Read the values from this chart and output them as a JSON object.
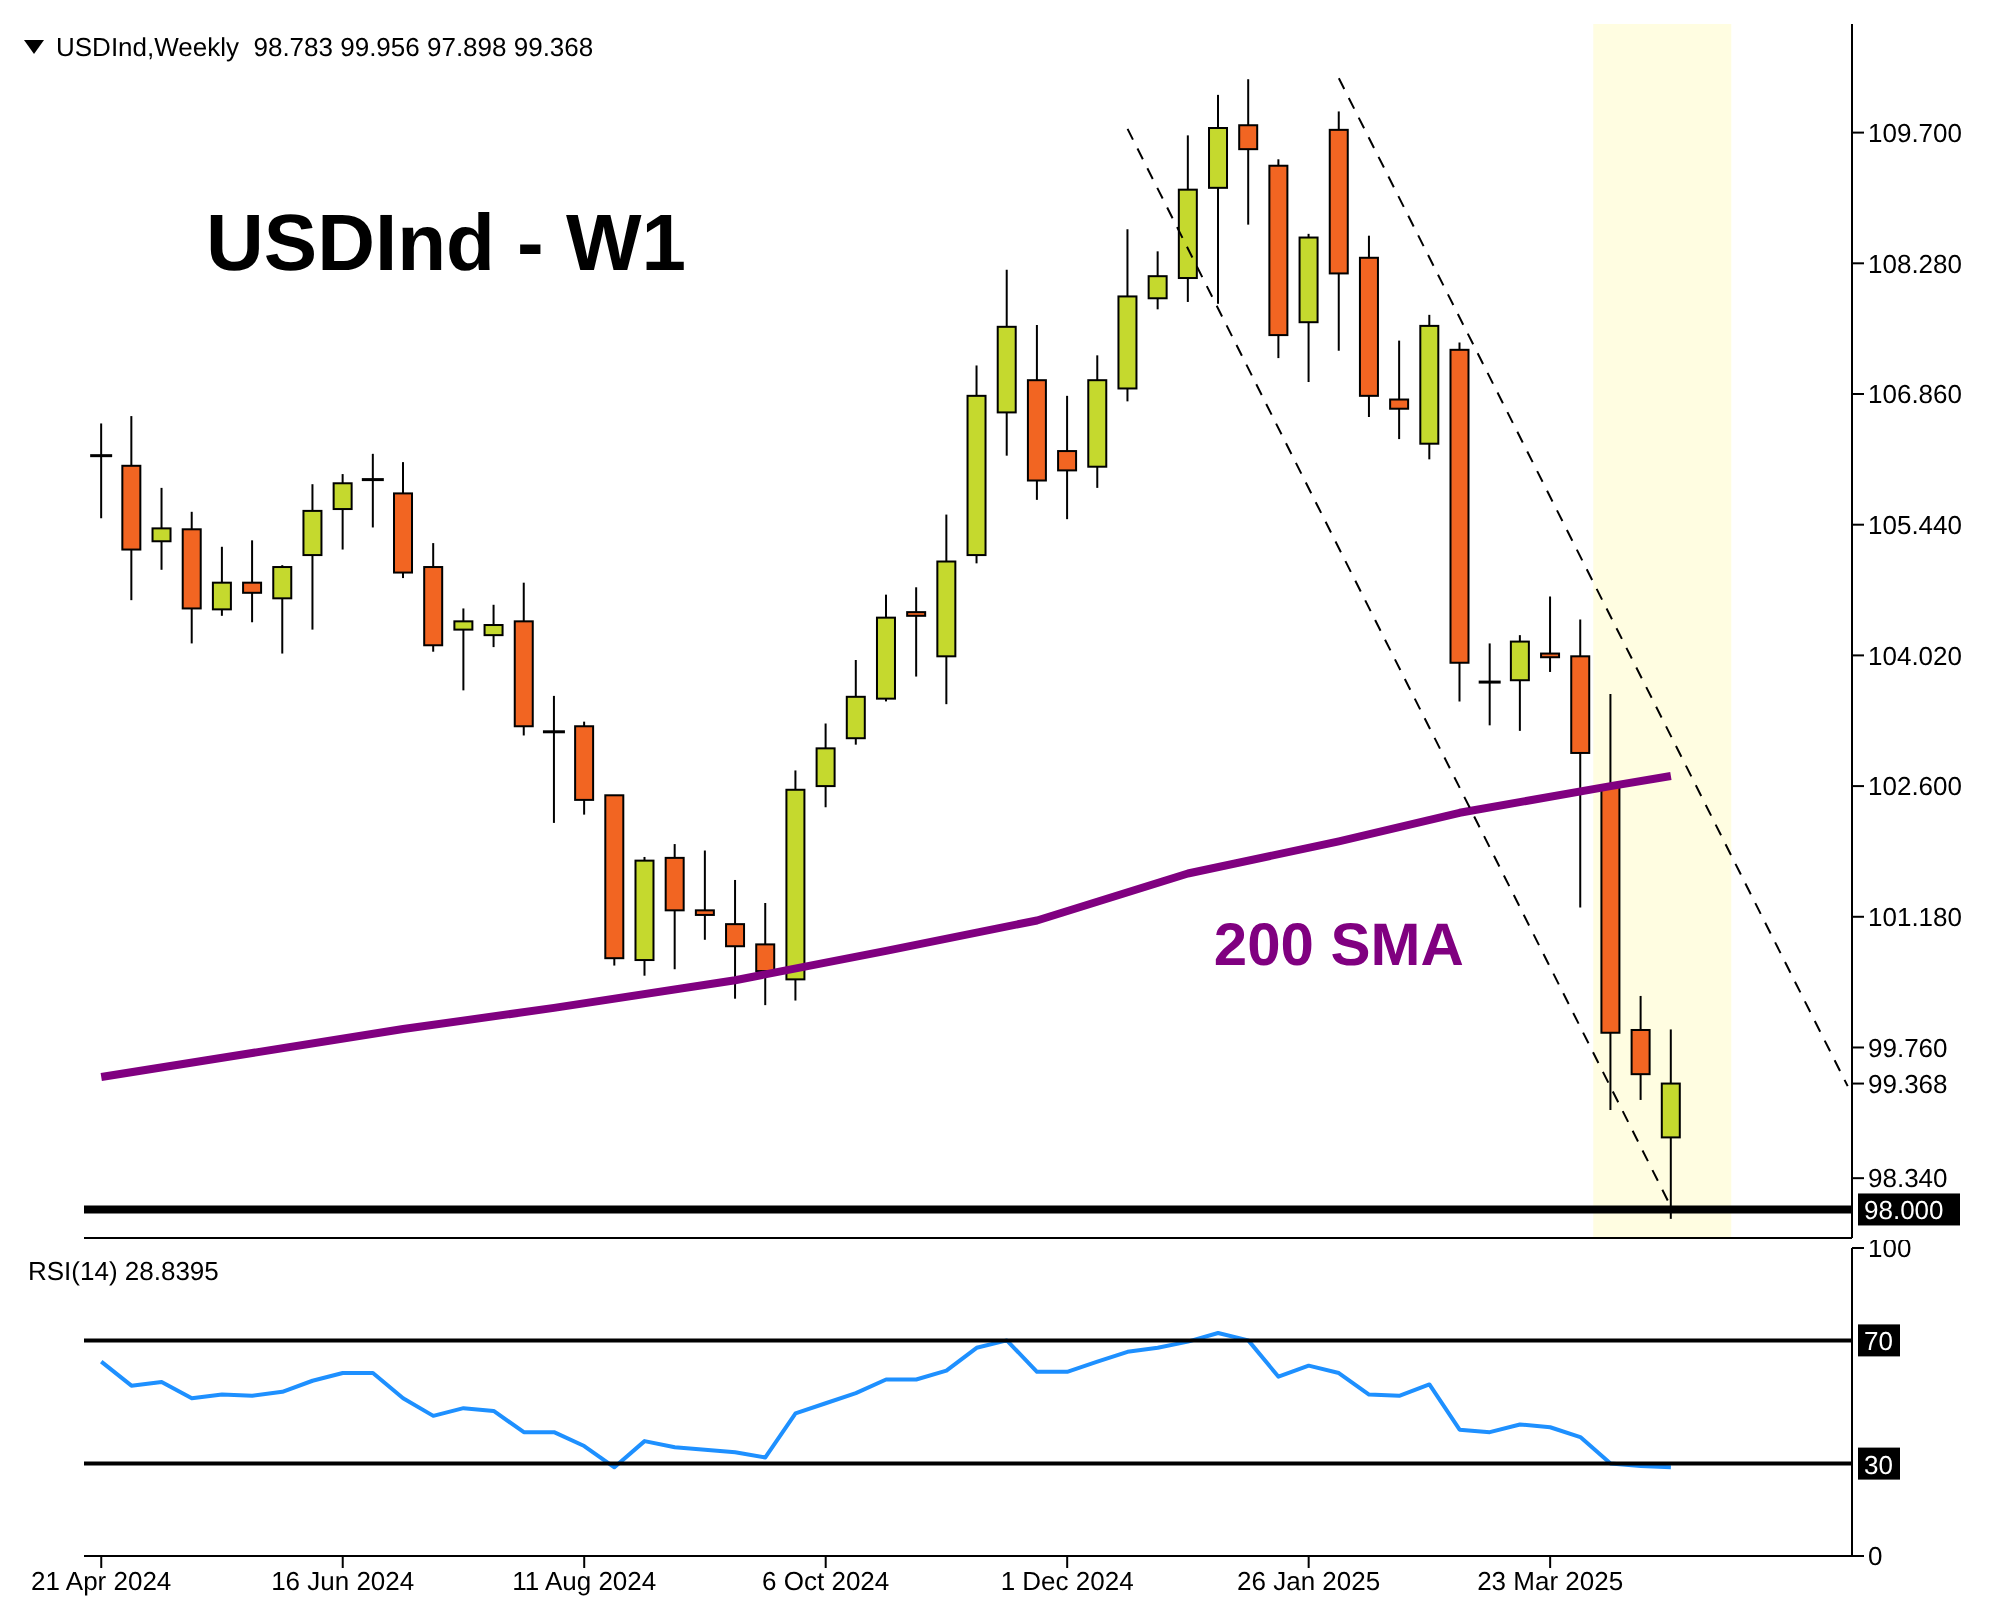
{
  "chart_data": [
    {
      "type": "candlestick",
      "title": "USDInd - W1",
      "subtitle": "USDInd,Weekly  98.783 99.956 97.898 99.368",
      "x": [
        "2024-04-21",
        "2024-04-28",
        "2024-05-05",
        "2024-05-12",
        "2024-05-19",
        "2024-05-26",
        "2024-06-02",
        "2024-06-09",
        "2024-06-16",
        "2024-06-23",
        "2024-06-30",
        "2024-07-07",
        "2024-07-14",
        "2024-07-21",
        "2024-07-28",
        "2024-08-04",
        "2024-08-11",
        "2024-08-18",
        "2024-08-25",
        "2024-09-01",
        "2024-09-08",
        "2024-09-15",
        "2024-09-22",
        "2024-09-29",
        "2024-10-06",
        "2024-10-13",
        "2024-10-20",
        "2024-10-27",
        "2024-11-03",
        "2024-11-10",
        "2024-11-17",
        "2024-11-24",
        "2024-12-01",
        "2024-12-08",
        "2024-12-15",
        "2024-12-22",
        "2024-12-29",
        "2025-01-05",
        "2025-01-12",
        "2025-01-19",
        "2025-01-26",
        "2025-02-02",
        "2025-02-09",
        "2025-02-16",
        "2025-02-23",
        "2025-03-02",
        "2025-03-09",
        "2025-03-16",
        "2025-03-23",
        "2025-03-30",
        "2025-04-06",
        "2025-04-13",
        "2025-04-20"
      ],
      "ohlc": [
        [
          106.19,
          106.54,
          105.51,
          106.19
        ],
        [
          106.08,
          106.62,
          104.62,
          105.17
        ],
        [
          105.26,
          105.84,
          104.95,
          105.4
        ],
        [
          105.39,
          105.58,
          104.15,
          104.53
        ],
        [
          104.52,
          105.2,
          104.45,
          104.81
        ],
        [
          104.81,
          105.27,
          104.38,
          104.7
        ],
        [
          104.64,
          105.0,
          104.04,
          104.98
        ],
        [
          105.11,
          105.88,
          104.3,
          105.59
        ],
        [
          105.61,
          105.99,
          105.17,
          105.89
        ],
        [
          105.93,
          106.21,
          105.41,
          105.93
        ],
        [
          105.78,
          106.12,
          104.86,
          104.92
        ],
        [
          104.98,
          105.24,
          104.06,
          104.13
        ],
        [
          104.3,
          104.53,
          103.64,
          104.39
        ],
        [
          104.24,
          104.57,
          104.11,
          104.35
        ],
        [
          104.39,
          104.81,
          103.15,
          103.25
        ],
        [
          103.19,
          103.58,
          102.2,
          103.19
        ],
        [
          103.25,
          103.3,
          102.29,
          102.45
        ],
        [
          102.5,
          102.5,
          100.65,
          100.73
        ],
        [
          100.71,
          101.83,
          100.54,
          101.79
        ],
        [
          101.82,
          101.97,
          100.61,
          101.25
        ],
        [
          101.25,
          101.9,
          100.93,
          101.2
        ],
        [
          101.1,
          101.58,
          100.29,
          100.86
        ],
        [
          100.88,
          101.33,
          100.22,
          100.59
        ],
        [
          100.5,
          102.77,
          100.27,
          102.56
        ],
        [
          102.6,
          103.28,
          102.37,
          103.01
        ],
        [
          103.12,
          103.97,
          103.05,
          103.57
        ],
        [
          103.55,
          104.68,
          103.52,
          104.43
        ],
        [
          104.49,
          104.76,
          103.79,
          104.45
        ],
        [
          104.01,
          105.55,
          103.49,
          105.04
        ],
        [
          105.11,
          107.17,
          105.02,
          106.84
        ],
        [
          106.66,
          108.21,
          106.19,
          107.59
        ],
        [
          107.01,
          107.61,
          105.71,
          105.92
        ],
        [
          106.24,
          106.84,
          105.5,
          106.03
        ],
        [
          106.07,
          107.28,
          105.84,
          107.01
        ],
        [
          106.92,
          108.65,
          106.78,
          107.92
        ],
        [
          107.9,
          108.41,
          107.78,
          108.14
        ],
        [
          108.12,
          109.67,
          107.86,
          109.08
        ],
        [
          109.1,
          110.11,
          107.84,
          109.75
        ],
        [
          109.78,
          110.28,
          108.7,
          109.52
        ],
        [
          109.34,
          109.41,
          107.25,
          107.5
        ],
        [
          107.64,
          108.6,
          106.99,
          108.56
        ],
        [
          109.73,
          109.93,
          107.33,
          108.17
        ],
        [
          108.34,
          108.58,
          106.61,
          106.84
        ],
        [
          106.8,
          107.44,
          106.37,
          106.7
        ],
        [
          106.32,
          107.72,
          106.15,
          107.6
        ],
        [
          107.34,
          107.42,
          103.52,
          103.94
        ],
        [
          103.73,
          104.15,
          103.26,
          103.73
        ],
        [
          103.75,
          104.24,
          103.2,
          104.17
        ],
        [
          104.04,
          104.66,
          103.84,
          104.0
        ],
        [
          104.01,
          104.41,
          101.28,
          102.96
        ],
        [
          102.6,
          103.6,
          99.08,
          99.92
        ],
        [
          99.95,
          100.32,
          99.19,
          99.47
        ],
        [
          98.783,
          99.956,
          97.898,
          99.368
        ]
      ],
      "colors": [
        "#000000",
        "#f26522",
        "#c5d92e",
        "#f26522",
        "#c5d92e",
        "#f26522",
        "#c5d92e",
        "#c5d92e",
        "#c5d92e",
        "#000000",
        "#f26522",
        "#f26522",
        "#c5d92e",
        "#c5d92e",
        "#f26522",
        "#000000",
        "#f26522",
        "#f26522",
        "#c5d92e",
        "#f26522",
        "#f26522",
        "#f26522",
        "#f26522",
        "#c5d92e",
        "#c5d92e",
        "#c5d92e",
        "#c5d92e",
        "#f26522",
        "#c5d92e",
        "#c5d92e",
        "#c5d92e",
        "#f26522",
        "#f26522",
        "#c5d92e",
        "#c5d92e",
        "#c5d92e",
        "#c5d92e",
        "#c5d92e",
        "#f26522",
        "#f26522",
        "#c5d92e",
        "#f26522",
        "#f26522",
        "#f26522",
        "#c5d92e",
        "#f26522",
        "#000000",
        "#c5d92e",
        "#f26522",
        "#f26522",
        "#f26522",
        "#f26522",
        "#c5d92e"
      ],
      "series": [
        {
          "type": "line",
          "name": "200 SMA",
          "color": "#800080",
          "x": [
            "2024-04-21",
            "2024-05-26",
            "2024-06-30",
            "2024-08-04",
            "2024-09-15",
            "2024-10-20",
            "2024-11-24",
            "2024-12-29",
            "2025-02-02",
            "2025-03-02",
            "2025-04-06",
            "2025-04-20"
          ],
          "values": [
            99.44,
            99.7,
            99.96,
            100.19,
            100.49,
            100.81,
            101.14,
            101.65,
            102.0,
            102.31,
            102.6,
            102.71
          ]
        },
        {
          "type": "line",
          "color": "#000000",
          "line_style": "dashed",
          "x": [
            "2024-12-15",
            "2025-04-20"
          ],
          "values": [
            109.74,
            98.03
          ]
        },
        {
          "type": "line",
          "color": "#000000",
          "line_style": "dashed",
          "x": [
            "2025-02-02",
            "2025-05-31"
          ],
          "values": [
            110.29,
            99.34
          ]
        }
      ],
      "xlim": [
        "2024-04-17",
        "2025-06-01"
      ],
      "ylim": [
        97.69,
        110.88
      ],
      "yticks": [
        {
          "value": 98.34,
          "label": "98.340"
        },
        {
          "value": 99.368,
          "label": "99.368"
        },
        {
          "value": 99.76,
          "label": "99.760"
        },
        {
          "value": 101.18,
          "label": "101.180"
        },
        {
          "value": 102.6,
          "label": "102.600"
        },
        {
          "value": 104.02,
          "label": "104.020"
        },
        {
          "value": 105.44,
          "label": "105.440"
        },
        {
          "value": 106.86,
          "label": "106.860"
        },
        {
          "value": 108.28,
          "label": "108.280"
        },
        {
          "value": 109.7,
          "label": "109.700"
        }
      ],
      "ref_lines": [
        {
          "axis": "y",
          "value": 98,
          "label": "98.000",
          "color": "#000000"
        }
      ],
      "bands": [
        {
          "axis": "x",
          "from": "2025-04-02",
          "to": "2025-05-04",
          "color": "#fffde1"
        }
      ],
      "tick_labels": "y"
    },
    {
      "type": "line",
      "title": "RSI(14) 28.8395",
      "color": "#1e90ff",
      "x": [
        "2024-04-21",
        "2024-04-28",
        "2024-05-05",
        "2024-05-12",
        "2024-05-19",
        "2024-05-26",
        "2024-06-02",
        "2024-06-09",
        "2024-06-16",
        "2024-06-23",
        "2024-06-30",
        "2024-07-07",
        "2024-07-14",
        "2024-07-21",
        "2024-07-28",
        "2024-08-04",
        "2024-08-11",
        "2024-08-18",
        "2024-08-25",
        "2024-09-01",
        "2024-09-08",
        "2024-09-15",
        "2024-09-22",
        "2024-09-29",
        "2024-10-06",
        "2024-10-13",
        "2024-10-20",
        "2024-10-27",
        "2024-11-03",
        "2024-11-10",
        "2024-11-17",
        "2024-11-24",
        "2024-12-01",
        "2024-12-08",
        "2024-12-15",
        "2024-12-22",
        "2024-12-29",
        "2025-01-05",
        "2025-01-12",
        "2025-01-19",
        "2025-01-26",
        "2025-02-02",
        "2025-02-09",
        "2025-02-16",
        "2025-02-23",
        "2025-03-02",
        "2025-03-09",
        "2025-03-16",
        "2025-03-23",
        "2025-03-30",
        "2025-04-06",
        "2025-04-13",
        "2025-04-20"
      ],
      "values": [
        63.1,
        55.3,
        56.5,
        51.2,
        52.4,
        52.0,
        53.3,
        56.9,
        59.4,
        59.4,
        51.2,
        45.5,
        48.0,
        47.1,
        40.2,
        40.2,
        35.7,
        28.8,
        37.3,
        35.3,
        34.5,
        33.7,
        32.0,
        46.3,
        49.6,
        52.9,
        57.3,
        57.3,
        60.2,
        67.6,
        70.0,
        59.8,
        59.8,
        63.1,
        66.3,
        67.6,
        69.6,
        72.4,
        70.0,
        58.2,
        61.8,
        59.4,
        52.4,
        52.0,
        55.7,
        41.0,
        40.2,
        42.7,
        41.8,
        38.6,
        30.0,
        29.2,
        28.8
      ],
      "xlim": [
        "2024-04-17",
        "2025-06-01"
      ],
      "ylim": [
        0,
        100
      ],
      "yticks": [
        0,
        100
      ],
      "xticks": [
        {
          "value": "2024-04-21",
          "label": "21 Apr 2024"
        },
        {
          "value": "2024-06-16",
          "label": "16 Jun 2024"
        },
        {
          "value": "2024-08-11",
          "label": "11 Aug 2024"
        },
        {
          "value": "2024-10-06",
          "label": "6 Oct 2024"
        },
        {
          "value": "2024-12-01",
          "label": "1 Dec 2024"
        },
        {
          "value": "2025-01-26",
          "label": "26 Jan 2025"
        },
        {
          "value": "2025-03-23",
          "label": "23 Mar 2025"
        }
      ],
      "ref_lines": [
        {
          "axis": "y",
          "value": 70,
          "label": "70",
          "color": "#000000"
        },
        {
          "axis": "y",
          "value": 30,
          "label": "30",
          "color": "#000000"
        }
      ]
    }
  ]
}
